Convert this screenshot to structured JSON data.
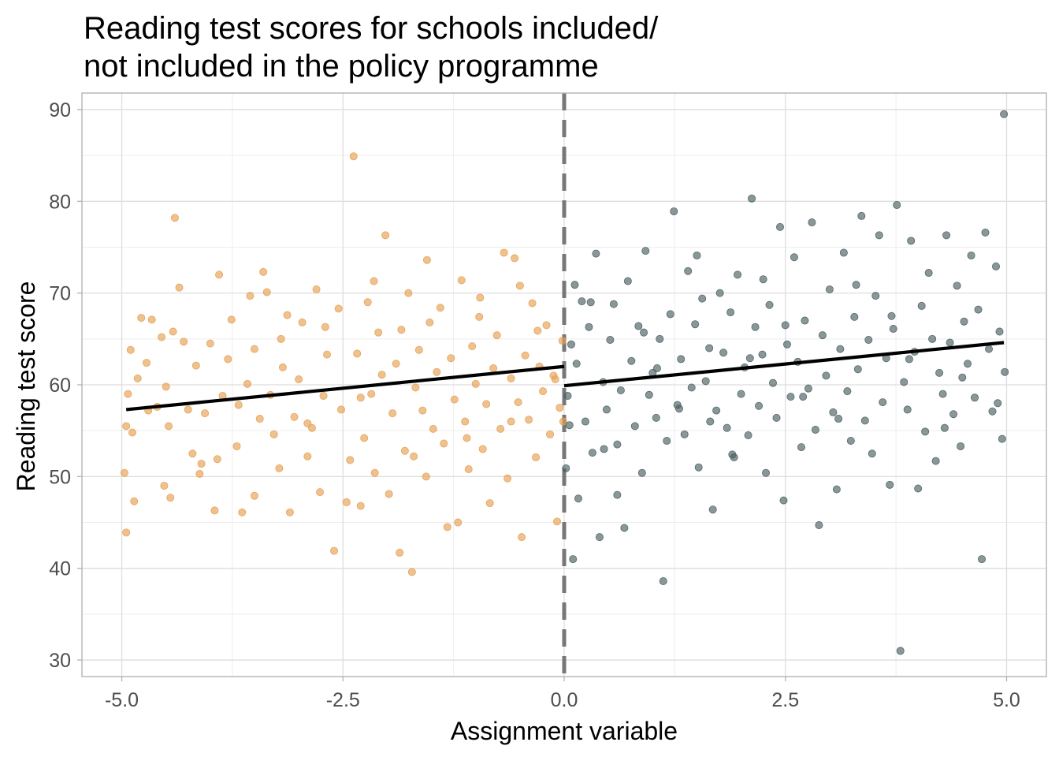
{
  "chart_data": {
    "type": "scatter",
    "title_lines": [
      "Reading test scores for schools included/",
      "not included in the policy programme"
    ],
    "xlabel": "Assignment variable",
    "ylabel": "Reading test score",
    "xlim": [
      -5.45,
      5.45
    ],
    "ylim": [
      28.2,
      91.8
    ],
    "x_ticks": [
      -5.0,
      -2.5,
      0.0,
      2.5,
      5.0
    ],
    "x_tick_labels": [
      "-5.0",
      "-2.5",
      "0.0",
      "2.5",
      "5.0"
    ],
    "y_ticks": [
      30,
      40,
      50,
      60,
      70,
      80,
      90
    ],
    "y_tick_labels": [
      "30",
      "40",
      "50",
      "60",
      "70",
      "80",
      "90"
    ],
    "grid": true,
    "legend": "none",
    "cutoff": 0.0,
    "series": [
      {
        "color": "#E69F52",
        "points": [
          [
            -4.95,
            55.5
          ],
          [
            -4.97,
            50.4
          ],
          [
            -4.95,
            43.9
          ],
          [
            -4.93,
            59.0
          ],
          [
            -4.9,
            63.8
          ],
          [
            -4.88,
            54.8
          ],
          [
            -4.86,
            47.3
          ],
          [
            -4.82,
            60.7
          ],
          [
            -4.78,
            67.3
          ],
          [
            -4.72,
            62.4
          ],
          [
            -4.66,
            67.1
          ],
          [
            -4.6,
            57.6
          ],
          [
            -4.55,
            65.2
          ],
          [
            -4.52,
            49.0
          ],
          [
            -4.5,
            59.8
          ],
          [
            -4.47,
            55.5
          ],
          [
            -4.45,
            47.7
          ],
          [
            -4.4,
            78.2
          ],
          [
            -4.35,
            70.6
          ],
          [
            -4.3,
            64.7
          ],
          [
            -4.25,
            57.3
          ],
          [
            -4.2,
            52.5
          ],
          [
            -4.16,
            62.1
          ],
          [
            -4.12,
            50.3
          ],
          [
            -4.06,
            56.9
          ],
          [
            -4.0,
            64.5
          ],
          [
            -3.95,
            46.3
          ],
          [
            -3.92,
            51.9
          ],
          [
            -3.86,
            58.8
          ],
          [
            -3.8,
            62.8
          ],
          [
            -3.76,
            67.1
          ],
          [
            -3.7,
            53.3
          ],
          [
            -3.68,
            57.8
          ],
          [
            -3.64,
            46.1
          ],
          [
            -3.58,
            60.1
          ],
          [
            -3.55,
            69.7
          ],
          [
            -3.5,
            63.9
          ],
          [
            -3.44,
            56.3
          ],
          [
            -3.4,
            72.3
          ],
          [
            -3.36,
            70.1
          ],
          [
            -3.32,
            58.9
          ],
          [
            -3.28,
            54.6
          ],
          [
            -3.22,
            50.9
          ],
          [
            -3.18,
            61.9
          ],
          [
            -3.13,
            67.6
          ],
          [
            -3.1,
            46.1
          ],
          [
            -3.05,
            56.5
          ],
          [
            -3.0,
            60.6
          ],
          [
            -2.96,
            66.8
          ],
          [
            -2.9,
            52.2
          ],
          [
            -2.85,
            55.3
          ],
          [
            -2.8,
            70.4
          ],
          [
            -2.76,
            48.3
          ],
          [
            -2.72,
            58.8
          ],
          [
            -2.68,
            63.3
          ],
          [
            -2.6,
            41.9
          ],
          [
            -2.55,
            68.3
          ],
          [
            -2.52,
            57.3
          ],
          [
            -2.46,
            47.2
          ],
          [
            -2.42,
            51.8
          ],
          [
            -2.38,
            84.9
          ],
          [
            -2.34,
            63.4
          ],
          [
            -2.3,
            46.8
          ],
          [
            -2.26,
            54.2
          ],
          [
            -2.22,
            69.0
          ],
          [
            -2.18,
            59.0
          ],
          [
            -2.14,
            50.4
          ],
          [
            -2.1,
            65.7
          ],
          [
            -2.06,
            61.1
          ],
          [
            -2.02,
            76.3
          ],
          [
            -1.98,
            48.1
          ],
          [
            -1.94,
            56.9
          ],
          [
            -1.9,
            62.3
          ],
          [
            -1.86,
            41.7
          ],
          [
            -1.84,
            66.0
          ],
          [
            -1.8,
            52.8
          ],
          [
            -1.76,
            70.0
          ],
          [
            -1.72,
            39.6
          ],
          [
            -1.68,
            59.7
          ],
          [
            -1.64,
            63.8
          ],
          [
            -1.6,
            57.2
          ],
          [
            -1.56,
            50.0
          ],
          [
            -1.52,
            66.8
          ],
          [
            -1.48,
            55.2
          ],
          [
            -1.44,
            61.4
          ],
          [
            -1.4,
            68.4
          ],
          [
            -1.36,
            53.6
          ],
          [
            -1.32,
            44.5
          ],
          [
            -1.28,
            62.9
          ],
          [
            -1.24,
            58.4
          ],
          [
            -1.2,
            45.0
          ],
          [
            -1.16,
            71.4
          ],
          [
            -1.12,
            56.0
          ],
          [
            -1.08,
            50.8
          ],
          [
            -1.04,
            64.2
          ],
          [
            -1.0,
            60.1
          ],
          [
            -0.96,
            67.4
          ],
          [
            -0.92,
            53.0
          ],
          [
            -0.88,
            57.9
          ],
          [
            -0.84,
            47.1
          ],
          [
            -0.8,
            61.8
          ],
          [
            -0.76,
            65.4
          ],
          [
            -0.72,
            55.2
          ],
          [
            -0.68,
            74.4
          ],
          [
            -0.64,
            49.8
          ],
          [
            -0.6,
            60.7
          ],
          [
            -0.56,
            73.8
          ],
          [
            -0.52,
            58.1
          ],
          [
            -0.48,
            43.4
          ],
          [
            -0.44,
            63.2
          ],
          [
            -0.4,
            56.2
          ],
          [
            -0.36,
            68.9
          ],
          [
            -0.32,
            52.1
          ],
          [
            -0.28,
            62.0
          ],
          [
            -0.24,
            59.3
          ],
          [
            -0.2,
            66.5
          ],
          [
            -0.16,
            54.6
          ],
          [
            -0.12,
            61.0
          ],
          [
            -0.08,
            45.1
          ],
          [
            -0.05,
            57.5
          ],
          [
            -0.02,
            64.8
          ],
          [
            -0.01,
            56.0
          ],
          [
            -4.42,
            65.8
          ],
          [
            -3.9,
            72.0
          ],
          [
            -3.2,
            65.0
          ],
          [
            -2.7,
            66.3
          ],
          [
            -2.15,
            71.3
          ],
          [
            -1.55,
            73.6
          ],
          [
            -0.95,
            69.5
          ],
          [
            -0.5,
            70.8
          ],
          [
            -0.3,
            65.9
          ],
          [
            -0.1,
            60.6
          ],
          [
            -4.7,
            57.2
          ],
          [
            -4.1,
            51.4
          ],
          [
            -3.5,
            47.9
          ],
          [
            -2.9,
            55.8
          ],
          [
            -2.3,
            58.6
          ],
          [
            -1.7,
            52.2
          ],
          [
            -1.1,
            54.2
          ],
          [
            -0.6,
            56.0
          ]
        ]
      },
      {
        "color": "#4A5F61",
        "points": [
          [
            0.02,
            50.9
          ],
          [
            0.04,
            58.8
          ],
          [
            0.06,
            55.6
          ],
          [
            0.08,
            64.4
          ],
          [
            0.1,
            41.0
          ],
          [
            0.12,
            70.9
          ],
          [
            0.14,
            62.3
          ],
          [
            0.16,
            47.6
          ],
          [
            0.2,
            69.1
          ],
          [
            0.24,
            56.0
          ],
          [
            0.28,
            66.3
          ],
          [
            0.32,
            52.6
          ],
          [
            0.36,
            74.3
          ],
          [
            0.4,
            43.4
          ],
          [
            0.44,
            60.3
          ],
          [
            0.48,
            57.3
          ],
          [
            0.52,
            64.9
          ],
          [
            0.56,
            68.8
          ],
          [
            0.6,
            53.5
          ],
          [
            0.64,
            59.4
          ],
          [
            0.68,
            44.4
          ],
          [
            0.72,
            71.3
          ],
          [
            0.76,
            62.6
          ],
          [
            0.8,
            55.5
          ],
          [
            0.84,
            66.4
          ],
          [
            0.88,
            50.4
          ],
          [
            0.92,
            74.6
          ],
          [
            0.96,
            58.9
          ],
          [
            1.0,
            61.3
          ],
          [
            1.04,
            56.4
          ],
          [
            1.08,
            65.0
          ],
          [
            1.12,
            38.6
          ],
          [
            1.16,
            53.9
          ],
          [
            1.2,
            67.7
          ],
          [
            1.24,
            78.9
          ],
          [
            1.28,
            57.8
          ],
          [
            1.32,
            62.8
          ],
          [
            1.36,
            54.6
          ],
          [
            1.4,
            72.4
          ],
          [
            1.44,
            59.7
          ],
          [
            1.48,
            66.6
          ],
          [
            1.52,
            51.0
          ],
          [
            1.56,
            69.4
          ],
          [
            1.6,
            60.4
          ],
          [
            1.64,
            64.0
          ],
          [
            1.68,
            46.4
          ],
          [
            1.72,
            57.2
          ],
          [
            1.76,
            70.0
          ],
          [
            1.8,
            63.5
          ],
          [
            1.84,
            55.3
          ],
          [
            1.88,
            67.9
          ],
          [
            1.92,
            52.1
          ],
          [
            1.96,
            72.0
          ],
          [
            2.0,
            59.0
          ],
          [
            2.04,
            61.9
          ],
          [
            2.08,
            54.5
          ],
          [
            2.12,
            80.3
          ],
          [
            2.16,
            66.3
          ],
          [
            2.2,
            57.7
          ],
          [
            2.24,
            63.3
          ],
          [
            2.28,
            50.4
          ],
          [
            2.32,
            68.7
          ],
          [
            2.36,
            60.2
          ],
          [
            2.4,
            56.4
          ],
          [
            2.44,
            77.2
          ],
          [
            2.48,
            47.4
          ],
          [
            2.52,
            64.4
          ],
          [
            2.56,
            58.7
          ],
          [
            2.6,
            73.9
          ],
          [
            2.64,
            62.5
          ],
          [
            2.68,
            53.2
          ],
          [
            2.72,
            67.0
          ],
          [
            2.76,
            59.6
          ],
          [
            2.8,
            77.7
          ],
          [
            2.84,
            55.1
          ],
          [
            2.88,
            44.7
          ],
          [
            2.92,
            65.4
          ],
          [
            2.96,
            61.0
          ],
          [
            3.0,
            70.4
          ],
          [
            3.04,
            57.0
          ],
          [
            3.08,
            48.6
          ],
          [
            3.12,
            63.9
          ],
          [
            3.16,
            74.4
          ],
          [
            3.2,
            59.3
          ],
          [
            3.24,
            53.9
          ],
          [
            3.28,
            67.4
          ],
          [
            3.32,
            61.7
          ],
          [
            3.36,
            78.4
          ],
          [
            3.4,
            56.1
          ],
          [
            3.44,
            64.9
          ],
          [
            3.48,
            52.5
          ],
          [
            3.52,
            69.7
          ],
          [
            3.56,
            76.3
          ],
          [
            3.6,
            58.1
          ],
          [
            3.64,
            62.9
          ],
          [
            3.68,
            49.1
          ],
          [
            3.72,
            66.1
          ],
          [
            3.76,
            79.6
          ],
          [
            3.8,
            31.0
          ],
          [
            3.84,
            60.3
          ],
          [
            3.88,
            57.3
          ],
          [
            3.92,
            75.7
          ],
          [
            3.96,
            63.6
          ],
          [
            4.0,
            48.7
          ],
          [
            4.04,
            68.6
          ],
          [
            4.08,
            54.9
          ],
          [
            4.12,
            72.2
          ],
          [
            4.16,
            65.0
          ],
          [
            4.2,
            51.7
          ],
          [
            4.24,
            61.3
          ],
          [
            4.28,
            59.0
          ],
          [
            4.32,
            76.3
          ],
          [
            4.36,
            64.6
          ],
          [
            4.4,
            56.8
          ],
          [
            4.44,
            70.8
          ],
          [
            4.48,
            53.3
          ],
          [
            4.52,
            66.9
          ],
          [
            4.56,
            62.3
          ],
          [
            4.6,
            74.1
          ],
          [
            4.64,
            58.6
          ],
          [
            4.68,
            68.2
          ],
          [
            4.72,
            41.0
          ],
          [
            4.76,
            76.6
          ],
          [
            4.8,
            63.9
          ],
          [
            4.84,
            57.1
          ],
          [
            4.88,
            72.9
          ],
          [
            4.92,
            65.8
          ],
          [
            4.95,
            54.1
          ],
          [
            4.97,
            89.5
          ],
          [
            4.98,
            61.4
          ],
          [
            0.3,
            69.0
          ],
          [
            0.9,
            65.7
          ],
          [
            1.5,
            74.1
          ],
          [
            2.1,
            62.9
          ],
          [
            2.7,
            58.7
          ],
          [
            3.3,
            70.9
          ],
          [
            3.9,
            62.8
          ],
          [
            4.5,
            60.8
          ],
          [
            0.6,
            48.0
          ],
          [
            1.3,
            57.4
          ],
          [
            1.9,
            52.4
          ],
          [
            2.5,
            66.5
          ],
          [
            3.1,
            56.3
          ],
          [
            3.7,
            67.5
          ],
          [
            4.3,
            55.3
          ],
          [
            4.9,
            58.0
          ],
          [
            0.45,
            53.0
          ],
          [
            1.05,
            61.8
          ],
          [
            1.65,
            56.0
          ],
          [
            2.25,
            71.5
          ]
        ]
      }
    ],
    "fit_lines": [
      {
        "x": [
          -4.95,
          0.0
        ],
        "y": [
          57.3,
          62.0
        ]
      },
      {
        "x": [
          0.0,
          4.97
        ],
        "y": [
          59.9,
          64.6
        ]
      }
    ]
  }
}
